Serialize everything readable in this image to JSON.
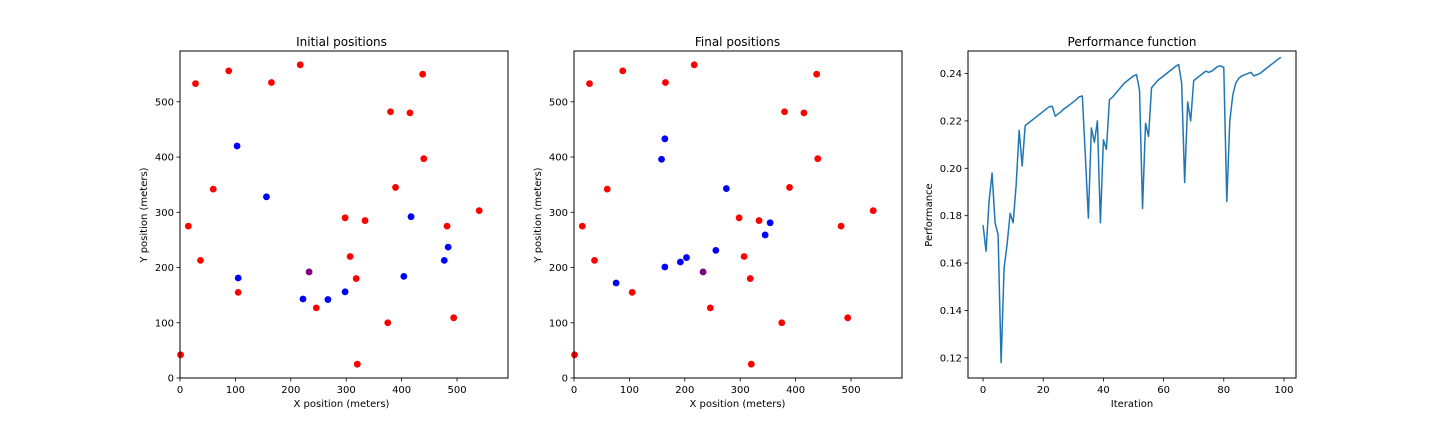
{
  "chart_data": [
    {
      "type": "scatter",
      "title": "Initial positions",
      "xlabel": "X position (meters)",
      "ylabel": "Y position (meters)",
      "xlim": [
        0,
        592
      ],
      "ylim": [
        0,
        592
      ],
      "xticks": [
        0,
        100,
        200,
        300,
        400,
        500
      ],
      "yticks": [
        0,
        100,
        200,
        300,
        400,
        500
      ],
      "grid": false,
      "series": [
        {
          "color": "#ff0000",
          "points": [
            [
              1,
              42
            ],
            [
              15,
              275
            ],
            [
              28,
              533
            ],
            [
              37,
              213
            ],
            [
              60,
              342
            ],
            [
              88,
              556
            ],
            [
              105,
              155
            ],
            [
              165,
              535
            ],
            [
              217,
              567
            ],
            [
              246,
              127
            ],
            [
              298,
              290
            ],
            [
              307,
              220
            ],
            [
              318,
              180
            ],
            [
              320,
              25
            ],
            [
              334,
              285
            ],
            [
              375,
              100
            ],
            [
              380,
              482
            ],
            [
              389,
              345
            ],
            [
              415,
              480
            ],
            [
              438,
              550
            ],
            [
              440,
              397
            ],
            [
              482,
              275
            ],
            [
              494,
              109
            ],
            [
              540,
              303
            ]
          ]
        },
        {
          "color": "#0000ff",
          "points": [
            [
              103,
              420
            ],
            [
              105,
              181
            ],
            [
              156,
              328
            ],
            [
              222,
              143
            ],
            [
              267,
              142
            ],
            [
              298,
              156
            ],
            [
              404,
              184
            ],
            [
              417,
              292
            ],
            [
              477,
              213
            ],
            [
              484,
              237
            ]
          ]
        },
        {
          "color": "#800080",
          "points": [
            [
              233,
              192
            ]
          ]
        }
      ]
    },
    {
      "type": "scatter",
      "title": "Final positions",
      "xlabel": "X position (meters)",
      "ylabel": "Y position (meters)",
      "xlim": [
        0,
        592
      ],
      "ylim": [
        0,
        592
      ],
      "xticks": [
        0,
        100,
        200,
        300,
        400,
        500
      ],
      "yticks": [
        0,
        100,
        200,
        300,
        400,
        500
      ],
      "grid": false,
      "series": [
        {
          "color": "#ff0000",
          "points": [
            [
              1,
              42
            ],
            [
              15,
              275
            ],
            [
              28,
              533
            ],
            [
              37,
              213
            ],
            [
              60,
              342
            ],
            [
              88,
              556
            ],
            [
              105,
              155
            ],
            [
              165,
              535
            ],
            [
              217,
              567
            ],
            [
              246,
              127
            ],
            [
              298,
              290
            ],
            [
              307,
              220
            ],
            [
              318,
              180
            ],
            [
              320,
              25
            ],
            [
              334,
              285
            ],
            [
              375,
              100
            ],
            [
              380,
              482
            ],
            [
              389,
              345
            ],
            [
              415,
              480
            ],
            [
              438,
              550
            ],
            [
              440,
              397
            ],
            [
              482,
              275
            ],
            [
              494,
              109
            ],
            [
              540,
              303
            ]
          ]
        },
        {
          "color": "#0000ff",
          "points": [
            [
              76,
              172
            ],
            [
              158,
              396
            ],
            [
              164,
              433
            ],
            [
              164,
              201
            ],
            [
              192,
              210
            ],
            [
              203,
              218
            ],
            [
              256,
              231
            ],
            [
              275,
              343
            ],
            [
              345,
              259
            ],
            [
              354,
              281
            ]
          ]
        },
        {
          "color": "#800080",
          "points": [
            [
              233,
              192
            ]
          ]
        }
      ]
    },
    {
      "type": "line",
      "title": "Performance function",
      "xlabel": "Iteration",
      "ylabel": "Performance",
      "xlim": [
        -5,
        104
      ],
      "ylim": [
        0.1115,
        0.2495
      ],
      "xticks": [
        0,
        20,
        40,
        60,
        80,
        100
      ],
      "yticks": [
        0.12,
        0.14,
        0.16,
        0.18,
        0.2,
        0.22,
        0.24
      ],
      "ytick_labels": [
        "0.12",
        "0.14",
        "0.16",
        "0.18",
        "0.20",
        "0.22",
        "0.24"
      ],
      "grid": false,
      "series": [
        {
          "color": "#1f77b4",
          "x": [
            0,
            1,
            2,
            3,
            4,
            5,
            6,
            7,
            8,
            9,
            10,
            11,
            12,
            13,
            14,
            15,
            16,
            17,
            18,
            19,
            20,
            21,
            22,
            23,
            24,
            25,
            26,
            27,
            28,
            29,
            30,
            31,
            32,
            33,
            34,
            35,
            36,
            37,
            38,
            39,
            40,
            41,
            42,
            43,
            44,
            45,
            46,
            47,
            48,
            49,
            50,
            51,
            52,
            53,
            54,
            55,
            56,
            57,
            58,
            59,
            60,
            61,
            62,
            63,
            64,
            65,
            66,
            67,
            68,
            69,
            70,
            71,
            72,
            73,
            74,
            75,
            76,
            77,
            78,
            79,
            80,
            81,
            82,
            83,
            84,
            85,
            86,
            87,
            88,
            89,
            90,
            91,
            92,
            93,
            94,
            95,
            96,
            97,
            98,
            99
          ],
          "values": [
            0.176,
            0.165,
            0.186,
            0.198,
            0.177,
            0.172,
            0.118,
            0.158,
            0.168,
            0.181,
            0.177,
            0.193,
            0.216,
            0.201,
            0.218,
            0.219,
            0.22,
            0.221,
            0.222,
            0.223,
            0.224,
            0.225,
            0.226,
            0.2262,
            0.222,
            0.223,
            0.224,
            0.2252,
            0.226,
            0.227,
            0.228,
            0.229,
            0.2302,
            0.2305,
            0.205,
            0.179,
            0.217,
            0.211,
            0.22,
            0.177,
            0.212,
            0.208,
            0.229,
            0.23,
            0.2315,
            0.233,
            0.2345,
            0.236,
            0.237,
            0.238,
            0.239,
            0.2395,
            0.233,
            0.183,
            0.219,
            0.2135,
            0.234,
            0.2355,
            0.237,
            0.238,
            0.239,
            0.24,
            0.241,
            0.242,
            0.243,
            0.2438,
            0.236,
            0.194,
            0.228,
            0.22,
            0.237,
            0.238,
            0.239,
            0.24,
            0.241,
            0.2405,
            0.241,
            0.242,
            0.243,
            0.2432,
            0.2425,
            0.186,
            0.22,
            0.231,
            0.236,
            0.238,
            0.239,
            0.2395,
            0.24,
            0.2405,
            0.239,
            0.2395,
            0.24,
            0.241,
            0.242,
            0.243,
            0.244,
            0.245,
            0.246,
            0.2468
          ]
        }
      ]
    }
  ]
}
